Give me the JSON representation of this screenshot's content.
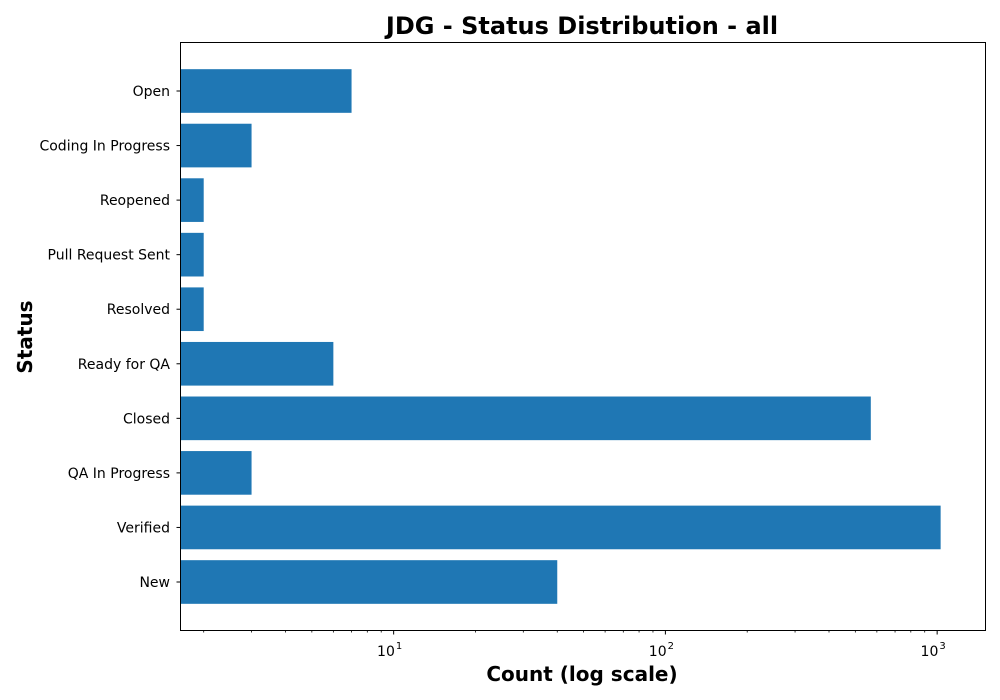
{
  "chart_data": {
    "type": "bar",
    "orientation": "horizontal",
    "title": "JDG - Status Distribution - all",
    "xlabel": "Count (log scale)",
    "ylabel": "Status",
    "x_scale": "log",
    "xlim": [
      1.65,
      1500
    ],
    "x_ticks": [
      {
        "value": 10,
        "base": "10",
        "exp": "1"
      },
      {
        "value": 100,
        "base": "10",
        "exp": "2"
      },
      {
        "value": 1000,
        "base": "10",
        "exp": "3"
      }
    ],
    "categories": [
      "Open",
      "Coding In Progress",
      "Reopened",
      "Pull Request Sent",
      "Resolved",
      "Ready for QA",
      "Closed",
      "QA In Progress",
      "Verified",
      "New"
    ],
    "values": [
      7,
      3,
      2,
      2,
      2,
      6,
      570,
      3,
      1030,
      40
    ],
    "bar_color": "#1f77b4",
    "grid": false,
    "legend": "none"
  }
}
